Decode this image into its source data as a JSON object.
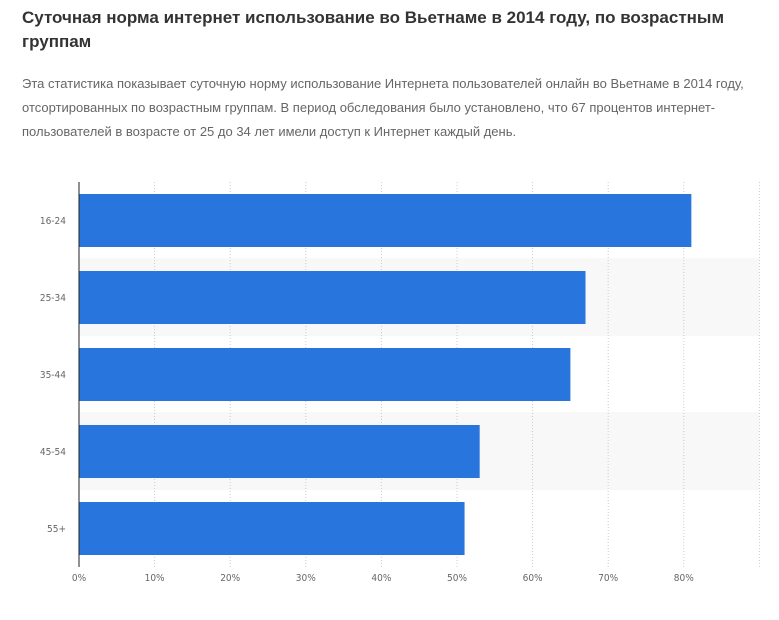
{
  "title": "Суточная норма интернет использование во Вьетнаме в 2014 году, по возрастным группам",
  "description": "Эта статистика показывает суточную норму использование Интернета пользователей онлайн во Вьетнаме в 2014 году, отсортированных по возрастным группам. В период обследования было установлено, что 67 процентов интернет-пользователей в возрасте от 25 до 34 лет имели доступ к Интернет каждый день.",
  "chart_data": {
    "type": "bar",
    "orientation": "horizontal",
    "categories": [
      "16-24",
      "25-34",
      "35-44",
      "45-54",
      "55+"
    ],
    "values": [
      81,
      67,
      65,
      53,
      51
    ],
    "unit": "%",
    "xlim": [
      0,
      90
    ],
    "x_ticks": [
      "0%",
      "10%",
      "20%",
      "30%",
      "40%",
      "50%",
      "60%",
      "70%",
      "80%"
    ],
    "grid": true,
    "bar_color": "#2876dd"
  }
}
